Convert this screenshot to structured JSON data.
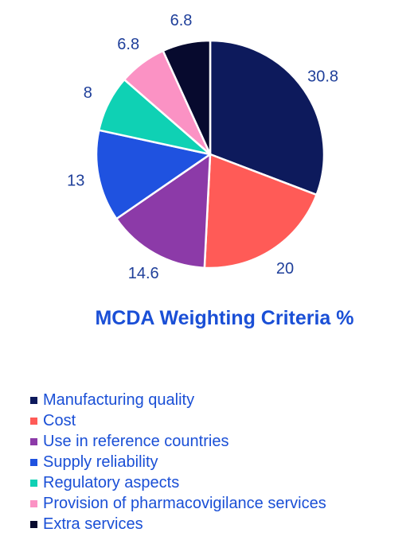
{
  "chart_data": {
    "type": "pie",
    "title": "MCDA Weighting Criteria %",
    "slices": [
      {
        "label": "Manufacturing quality",
        "value": 30.8,
        "color": "#0d1a5c"
      },
      {
        "label": "Cost",
        "value": 20,
        "color": "#ff5b57"
      },
      {
        "label": "Use in reference countries",
        "value": 14.6,
        "color": "#8c3aa8"
      },
      {
        "label": "Supply reliability",
        "value": 13,
        "color": "#1f52e0"
      },
      {
        "label": "Regulatory aspects",
        "value": 8,
        "color": "#0fd1b4"
      },
      {
        "label": "Provision of pharmacovigilance services",
        "value": 6.8,
        "color": "#fb92c4"
      },
      {
        "label": "Extra services",
        "value": 6.8,
        "color": "#070a2e"
      }
    ],
    "data_labels": [
      "30.8",
      "20",
      "14.6",
      "13",
      "8",
      "6.8",
      "6.8"
    ],
    "legend_position": "bottom",
    "start_angle": "12 o'clock",
    "direction": "clockwise"
  }
}
